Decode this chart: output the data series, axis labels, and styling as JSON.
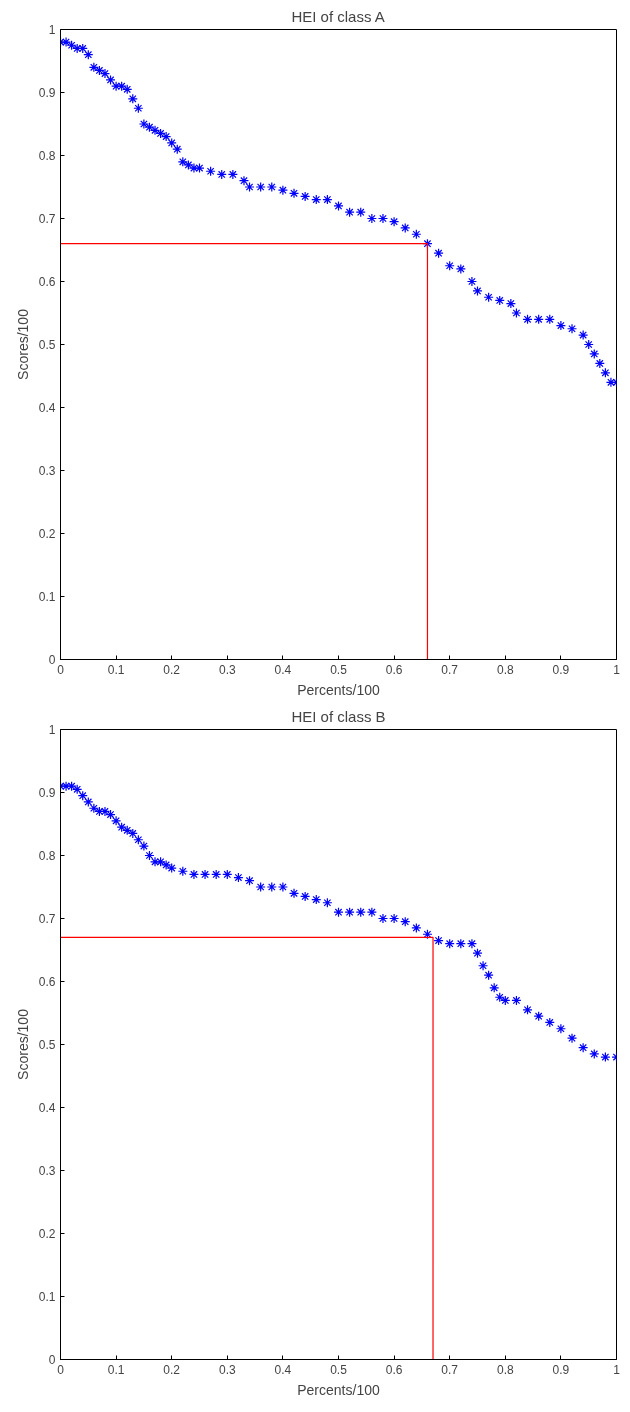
{
  "chart_data": [
    {
      "type": "scatter",
      "title": "HEI of class A",
      "xlabel": "Percents/100",
      "ylabel": "Scores/100",
      "grid": false,
      "xlim": [
        0,
        1
      ],
      "ylim": [
        0,
        1
      ],
      "xticks": [
        0,
        0.1,
        0.2,
        0.3,
        0.4,
        0.5,
        0.6,
        0.7,
        0.8,
        0.9,
        1
      ],
      "yticks": [
        0,
        0.1,
        0.2,
        0.3,
        0.4,
        0.5,
        0.6,
        0.7,
        0.8,
        0.9,
        1
      ],
      "series": [
        {
          "marker": "cross",
          "color": "#0000ff",
          "x": [
            0,
            0.01,
            0.02,
            0.03,
            0.04,
            0.05,
            0.06,
            0.07,
            0.08,
            0.09,
            0.1,
            0.11,
            0.12,
            0.13,
            0.14,
            0.15,
            0.16,
            0.17,
            0.18,
            0.19,
            0.2,
            0.21,
            0.22,
            0.23,
            0.24,
            0.25,
            0.27,
            0.29,
            0.31,
            0.33,
            0.34,
            0.36,
            0.38,
            0.4,
            0.42,
            0.44,
            0.46,
            0.48,
            0.5,
            0.52,
            0.54,
            0.56,
            0.58,
            0.6,
            0.62,
            0.64,
            0.66,
            0.68,
            0.7,
            0.72,
            0.74,
            0.75,
            0.77,
            0.79,
            0.81,
            0.82,
            0.84,
            0.86,
            0.88,
            0.9,
            0.92,
            0.94,
            0.95,
            0.96,
            0.97,
            0.98,
            0.99,
            1
          ],
          "values": [
            0.98,
            0.98,
            0.975,
            0.97,
            0.97,
            0.96,
            0.94,
            0.935,
            0.93,
            0.92,
            0.91,
            0.91,
            0.905,
            0.89,
            0.875,
            0.85,
            0.845,
            0.84,
            0.835,
            0.83,
            0.82,
            0.81,
            0.79,
            0.785,
            0.78,
            0.78,
            0.775,
            0.77,
            0.77,
            0.76,
            0.75,
            0.75,
            0.75,
            0.745,
            0.74,
            0.735,
            0.73,
            0.73,
            0.72,
            0.71,
            0.71,
            0.7,
            0.7,
            0.695,
            0.685,
            0.675,
            0.66,
            0.645,
            0.625,
            0.62,
            0.6,
            0.585,
            0.575,
            0.57,
            0.565,
            0.55,
            0.54,
            0.54,
            0.54,
            0.53,
            0.525,
            0.515,
            0.5,
            0.485,
            0.47,
            0.455,
            0.44,
            0.44
          ]
        },
        {
          "type": "line",
          "color": "#ff0000",
          "x": [
            0,
            0.66,
            0.66
          ],
          "values": [
            0.66,
            0.66,
            0
          ]
        }
      ]
    },
    {
      "type": "scatter",
      "title": "HEI of class B",
      "xlabel": "Percents/100",
      "ylabel": "Scores/100",
      "grid": false,
      "xlim": [
        0,
        1
      ],
      "ylim": [
        0,
        1
      ],
      "xticks": [
        0,
        0.1,
        0.2,
        0.3,
        0.4,
        0.5,
        0.6,
        0.7,
        0.8,
        0.9,
        1
      ],
      "yticks": [
        0,
        0.1,
        0.2,
        0.3,
        0.4,
        0.5,
        0.6,
        0.7,
        0.8,
        0.9,
        1
      ],
      "series": [
        {
          "marker": "cross",
          "color": "#0000ff",
          "x": [
            0,
            0.01,
            0.02,
            0.03,
            0.04,
            0.05,
            0.06,
            0.07,
            0.08,
            0.09,
            0.1,
            0.11,
            0.12,
            0.13,
            0.14,
            0.15,
            0.16,
            0.17,
            0.18,
            0.19,
            0.2,
            0.22,
            0.24,
            0.26,
            0.28,
            0.3,
            0.32,
            0.34,
            0.36,
            0.38,
            0.4,
            0.42,
            0.44,
            0.46,
            0.48,
            0.5,
            0.52,
            0.54,
            0.56,
            0.58,
            0.6,
            0.62,
            0.64,
            0.66,
            0.68,
            0.7,
            0.72,
            0.74,
            0.75,
            0.76,
            0.77,
            0.78,
            0.79,
            0.8,
            0.82,
            0.84,
            0.86,
            0.88,
            0.9,
            0.92,
            0.94,
            0.96,
            0.98,
            1
          ],
          "values": [
            0.91,
            0.91,
            0.91,
            0.905,
            0.895,
            0.885,
            0.875,
            0.87,
            0.87,
            0.865,
            0.855,
            0.845,
            0.84,
            0.835,
            0.825,
            0.815,
            0.8,
            0.79,
            0.79,
            0.785,
            0.78,
            0.775,
            0.77,
            0.77,
            0.77,
            0.77,
            0.765,
            0.76,
            0.75,
            0.75,
            0.75,
            0.74,
            0.735,
            0.73,
            0.725,
            0.71,
            0.71,
            0.71,
            0.71,
            0.7,
            0.7,
            0.695,
            0.685,
            0.675,
            0.665,
            0.66,
            0.66,
            0.66,
            0.645,
            0.625,
            0.61,
            0.59,
            0.575,
            0.57,
            0.57,
            0.555,
            0.545,
            0.535,
            0.525,
            0.51,
            0.495,
            0.485,
            0.48,
            0.48
          ]
        },
        {
          "type": "line",
          "color": "#ff0000",
          "x": [
            0,
            0.67,
            0.67
          ],
          "values": [
            0.67,
            0.67,
            0
          ]
        }
      ]
    }
  ]
}
